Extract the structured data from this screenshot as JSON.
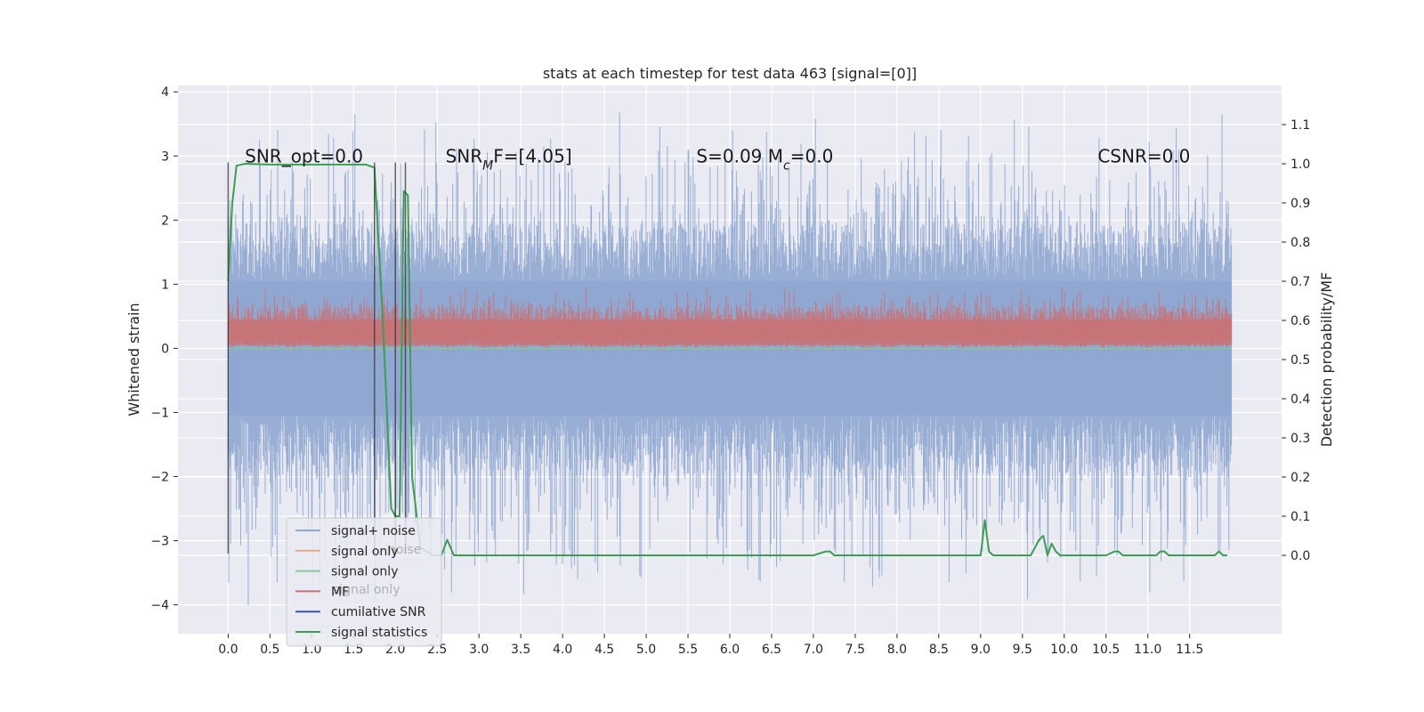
{
  "chart_data": {
    "type": "line",
    "title": "stats at each timestep for test data 463 [signal=[0]]",
    "ylabel": "Whitened strain",
    "y2label": "Detection probability/MF",
    "xlim": [
      -0.6,
      12.6
    ],
    "ylim": [
      -4.45,
      4.1
    ],
    "y2lim": [
      -0.2,
      1.2
    ],
    "x_ticks": [
      0.0,
      0.5,
      1.0,
      1.5,
      2.0,
      2.5,
      3.0,
      3.5,
      4.0,
      4.5,
      5.0,
      5.5,
      6.0,
      6.5,
      7.0,
      7.5,
      8.0,
      8.5,
      9.0,
      9.5,
      10.0,
      10.5,
      11.0,
      11.5
    ],
    "x_tick_labels": [
      "0.0",
      "0.5",
      "1.0",
      "1.5",
      "2.0",
      "2.5",
      "3.0",
      "3.5",
      "4.0",
      "4.5",
      "5.0",
      "5.5",
      "6.0",
      "6.5",
      "7.0",
      "7.5",
      "8.0",
      "8.5",
      "9.0",
      "9.5",
      "10.0",
      "10.5",
      "11.0",
      "11.5"
    ],
    "y_ticks": [
      -4,
      -3,
      -2,
      -1,
      0,
      1,
      2,
      3,
      4
    ],
    "y_tick_labels": [
      "−4",
      "−3",
      "−2",
      "−1",
      "0",
      "1",
      "2",
      "3",
      "4"
    ],
    "y2_ticks": [
      0.0,
      0.1,
      0.2,
      0.3,
      0.4,
      0.5,
      0.6,
      0.7,
      0.8,
      0.9,
      1.0,
      1.1
    ],
    "y2_tick_labels": [
      "0.0",
      "0.1",
      "0.2",
      "0.3",
      "0.4",
      "0.5",
      "0.6",
      "0.7",
      "0.8",
      "0.9",
      "1.0",
      "1.1"
    ],
    "grid": true,
    "annotations": [
      {
        "text": "SNR_opt=0.0",
        "x": 0.2,
        "y": 3.0
      },
      {
        "text": "SNR_MF=[4.05]",
        "x": 2.6,
        "y": 3.0
      },
      {
        "text": "S=0.09   M_c=0.0",
        "x": 5.6,
        "y": 3.0
      },
      {
        "text": "CSNR=0.0",
        "x": 10.4,
        "y": 3.0
      }
    ],
    "vlines": [
      0.0,
      1.75,
      2.0,
      2.12
    ],
    "vline_range": [
      -3.2,
      2.9
    ],
    "legend": {
      "position": "lower-left",
      "entries": [
        {
          "label": "signal+ noise",
          "color": "#8fa7d0"
        },
        {
          "label": "signal only",
          "color": "#e8a888"
        },
        {
          "label": "signal only",
          "color": "#8dc49b"
        },
        {
          "label": "MF",
          "color": "#c97276"
        },
        {
          "label": "cumilative SNR",
          "color": "#2f59a6"
        },
        {
          "label": "signal statistics",
          "color": "#3d9d55"
        }
      ],
      "ghost_labels": [
        "noise",
        "signal only"
      ]
    },
    "series": [
      {
        "name": "signal+ noise",
        "axis": "left",
        "color": "#8fa7d0",
        "x_range": [
          0.0,
          12.0
        ],
        "samples": 1600,
        "base_envelope": [
          1.05,
          -1.05
        ],
        "spike_max": 3.7,
        "spike_min": -4.05
      },
      {
        "name": "MF",
        "axis": "left",
        "color": "#c97276",
        "x_range": [
          0.0,
          12.0
        ],
        "samples": 1600,
        "band": [
          0.0,
          0.55
        ],
        "spike_max": 1.0
      },
      {
        "name": "signal only",
        "axis": "left",
        "color": "#8dc49b",
        "x": [
          0.0,
          12.0
        ],
        "y": [
          0.0,
          0.0
        ]
      },
      {
        "name": "signal statistics",
        "axis": "right",
        "color": "#3d9d55",
        "x": [
          0.0,
          0.05,
          0.1,
          0.2,
          0.5,
          1.0,
          1.5,
          1.65,
          1.75,
          1.85,
          1.95,
          2.0,
          2.05,
          2.1,
          2.15,
          2.2,
          2.3,
          2.45,
          2.55,
          2.62,
          2.7,
          3.0,
          3.5,
          4.0,
          5.0,
          6.0,
          7.0,
          7.15,
          7.2,
          7.25,
          7.5,
          8.0,
          8.7,
          8.8,
          8.85,
          8.9,
          9.0,
          9.05,
          9.1,
          9.15,
          9.2,
          9.3,
          9.5,
          9.6,
          9.7,
          9.75,
          9.8,
          9.85,
          9.9,
          9.95,
          10.0,
          10.2,
          10.5,
          10.6,
          10.65,
          10.7,
          11.0,
          11.1,
          11.15,
          11.2,
          11.25,
          11.3,
          11.5,
          11.6,
          11.8,
          11.85,
          11.9,
          11.95
        ],
        "y": [
          0.7,
          0.9,
          0.995,
          1.0,
          0.998,
          0.998,
          0.998,
          0.998,
          0.99,
          0.6,
          0.12,
          0.1,
          0.1,
          0.93,
          0.92,
          0.2,
          0.02,
          0.0,
          0.0,
          0.04,
          0.0,
          0.0,
          0.0,
          0.0,
          0.0,
          0.0,
          0.0,
          0.01,
          0.01,
          0.0,
          0.0,
          0.0,
          0.0,
          0.0,
          0.0,
          0.0,
          0.0,
          0.09,
          0.01,
          0.0,
          0.0,
          0.0,
          0.0,
          0.0,
          0.04,
          0.05,
          0.0,
          0.03,
          0.01,
          0.0,
          0.0,
          0.0,
          0.0,
          0.01,
          0.01,
          0.0,
          0.0,
          0.0,
          0.01,
          0.01,
          0.0,
          0.0,
          0.0,
          0.0,
          0.0,
          0.01,
          0.0,
          0.0
        ]
      }
    ]
  }
}
